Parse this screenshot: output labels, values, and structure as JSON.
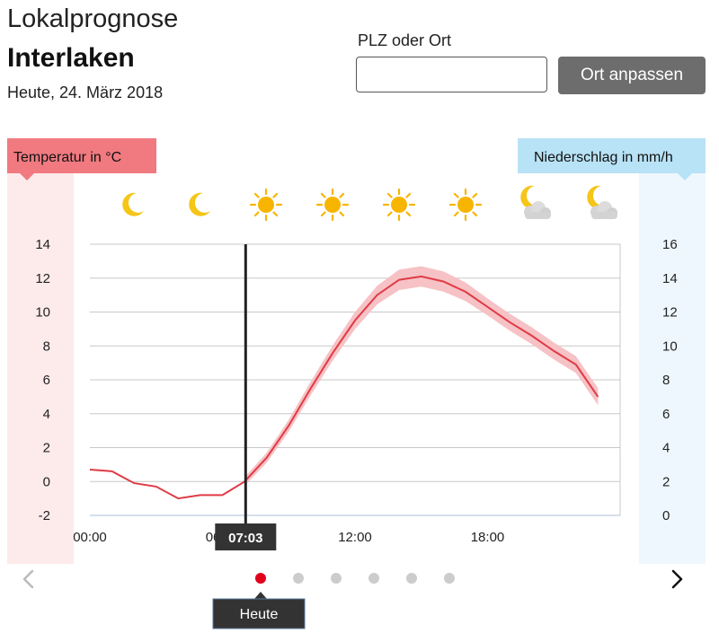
{
  "header": {
    "title": "Lokalprognose",
    "location": "Interlaken",
    "date": "Heute, 24. März 2018"
  },
  "search": {
    "label": "PLZ oder Ort",
    "value": "",
    "placeholder": "",
    "button_label": "Ort anpassen"
  },
  "colors": {
    "temperature_accent": "#f07a80",
    "temperature_band": "#fdebec",
    "precip_accent": "#b8e2f5",
    "precip_band": "#eef7fd",
    "line": "#e03b46",
    "uncertainty": "#f6c2c5",
    "badge": "#333333",
    "active_dot": "#e3001b",
    "inactive_dot": "#cccccc"
  },
  "weather_icons": [
    "moon-icon",
    "moon-icon",
    "sun-icon",
    "sun-icon",
    "sun-icon",
    "sun-icon",
    "moon-cloud-icon",
    "moon-cloud-icon"
  ],
  "navigation": {
    "prev_icon": "chevron-left-icon",
    "next_icon": "chevron-right-icon",
    "day_count": 6,
    "active_day": 0,
    "active_label": "Heute"
  },
  "chart_data": {
    "type": "line",
    "left_axis_title": "Temperatur in °C",
    "right_axis_title": "Niederschlag in mm/h",
    "x_unit": "hours",
    "xlim": [
      0,
      24
    ],
    "ylim": [
      -2,
      14
    ],
    "y_ticks": [
      14,
      12,
      10,
      8,
      6,
      4,
      2,
      0,
      -2
    ],
    "y_tick_labels": [
      "14",
      "12",
      "10",
      "8",
      "6",
      "4",
      "2",
      "0",
      "-2"
    ],
    "y2lim": [
      0,
      16
    ],
    "y2_tick_labels": [
      "16",
      "14",
      "12",
      "10",
      "8",
      "6",
      "4",
      "2",
      "0"
    ],
    "x_ticks": [
      0,
      6,
      12,
      18
    ],
    "x_tick_labels": [
      "00:00",
      "06:00",
      "12:00",
      "18:00"
    ],
    "current_time": 7.05,
    "current_time_label": "07:03",
    "grid": true,
    "series": [
      {
        "x": [
          0,
          1,
          2,
          3,
          4,
          5,
          6,
          7,
          8,
          9,
          10,
          11,
          12,
          13,
          14,
          15,
          16,
          17,
          18,
          19,
          20,
          21,
          22,
          23
        ],
        "values": [
          0.7,
          0.6,
          -0.1,
          -0.3,
          -1.0,
          -0.8,
          -0.8,
          0.0,
          1.4,
          3.3,
          5.5,
          7.6,
          9.5,
          11.0,
          11.9,
          12.1,
          11.8,
          11.2,
          10.3,
          9.4,
          8.6,
          7.7,
          6.9,
          5.0
        ]
      }
    ],
    "uncertainty_start_index": 7,
    "uncertainty_halfwidth": [
      0,
      0,
      0,
      0,
      0,
      0,
      0,
      0.25,
      0.3,
      0.35,
      0.4,
      0.45,
      0.5,
      0.55,
      0.6,
      0.6,
      0.6,
      0.55,
      0.5,
      0.5,
      0.5,
      0.5,
      0.5,
      0.5
    ]
  }
}
